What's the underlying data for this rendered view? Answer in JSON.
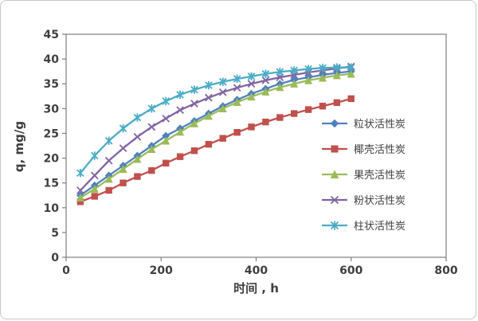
{
  "figure": {
    "xlabel": "时间 , h",
    "ylabel": "q, mg/g"
  },
  "chart_data": {
    "type": "line",
    "title": "",
    "xlabel": "时间 , h",
    "ylabel": "q, mg/g",
    "xlim": [
      0,
      800
    ],
    "ylim": [
      0,
      45
    ],
    "xticks": [
      0,
      200,
      400,
      600,
      800
    ],
    "yticks": [
      0,
      5,
      10,
      15,
      20,
      25,
      30,
      35,
      40,
      45
    ],
    "grid": false,
    "legend_position": "right-inside",
    "x": [
      30,
      60,
      90,
      120,
      150,
      180,
      210,
      240,
      270,
      300,
      330,
      360,
      390,
      420,
      450,
      480,
      510,
      540,
      570,
      600
    ],
    "series": [
      {
        "name": "粒状活性炭",
        "marker": "diamond",
        "color": "#4F81BD",
        "values": [
          12.5,
          14.5,
          16.5,
          18.5,
          20.5,
          22.5,
          24.5,
          26,
          27.5,
          29,
          30.5,
          31.8,
          33,
          34,
          35,
          35.8,
          36.3,
          36.8,
          37.2,
          37.5
        ]
      },
      {
        "name": "椰壳活性炭",
        "marker": "square",
        "color": "#C0504D",
        "values": [
          11.2,
          12.3,
          13.5,
          15,
          16.3,
          17.5,
          19,
          20.3,
          21.5,
          22.8,
          24,
          25.2,
          26.3,
          27.3,
          28.2,
          29,
          29.8,
          30.5,
          31.2,
          32
        ]
      },
      {
        "name": "果壳活性炭",
        "marker": "triangle",
        "color": "#9BBB59",
        "values": [
          12,
          13.8,
          15.8,
          17.8,
          19.8,
          21.8,
          23.5,
          25.3,
          27,
          28.5,
          30,
          31.3,
          32.4,
          33.4,
          34.3,
          35,
          35.7,
          36.2,
          36.7,
          37
        ]
      },
      {
        "name": "粉状活性炭",
        "marker": "x",
        "color": "#8064A2",
        "values": [
          13.5,
          16.5,
          19.5,
          22,
          24.3,
          26.3,
          28,
          29.7,
          31,
          32.2,
          33.3,
          34.2,
          35,
          35.7,
          36.3,
          36.8,
          37.3,
          37.7,
          38.1,
          38.5
        ]
      },
      {
        "name": "柱状活性炭",
        "marker": "asterisk",
        "color": "#4BACC6",
        "values": [
          17,
          20.5,
          23.5,
          26,
          28.2,
          30,
          31.5,
          32.8,
          33.8,
          34.7,
          35.4,
          36,
          36.5,
          37,
          37.4,
          37.7,
          38,
          38.2,
          38.3,
          38.3
        ]
      }
    ]
  },
  "style": {
    "axis_color": "#7f7f7f",
    "tick_text_color": "#3f3f3f"
  }
}
